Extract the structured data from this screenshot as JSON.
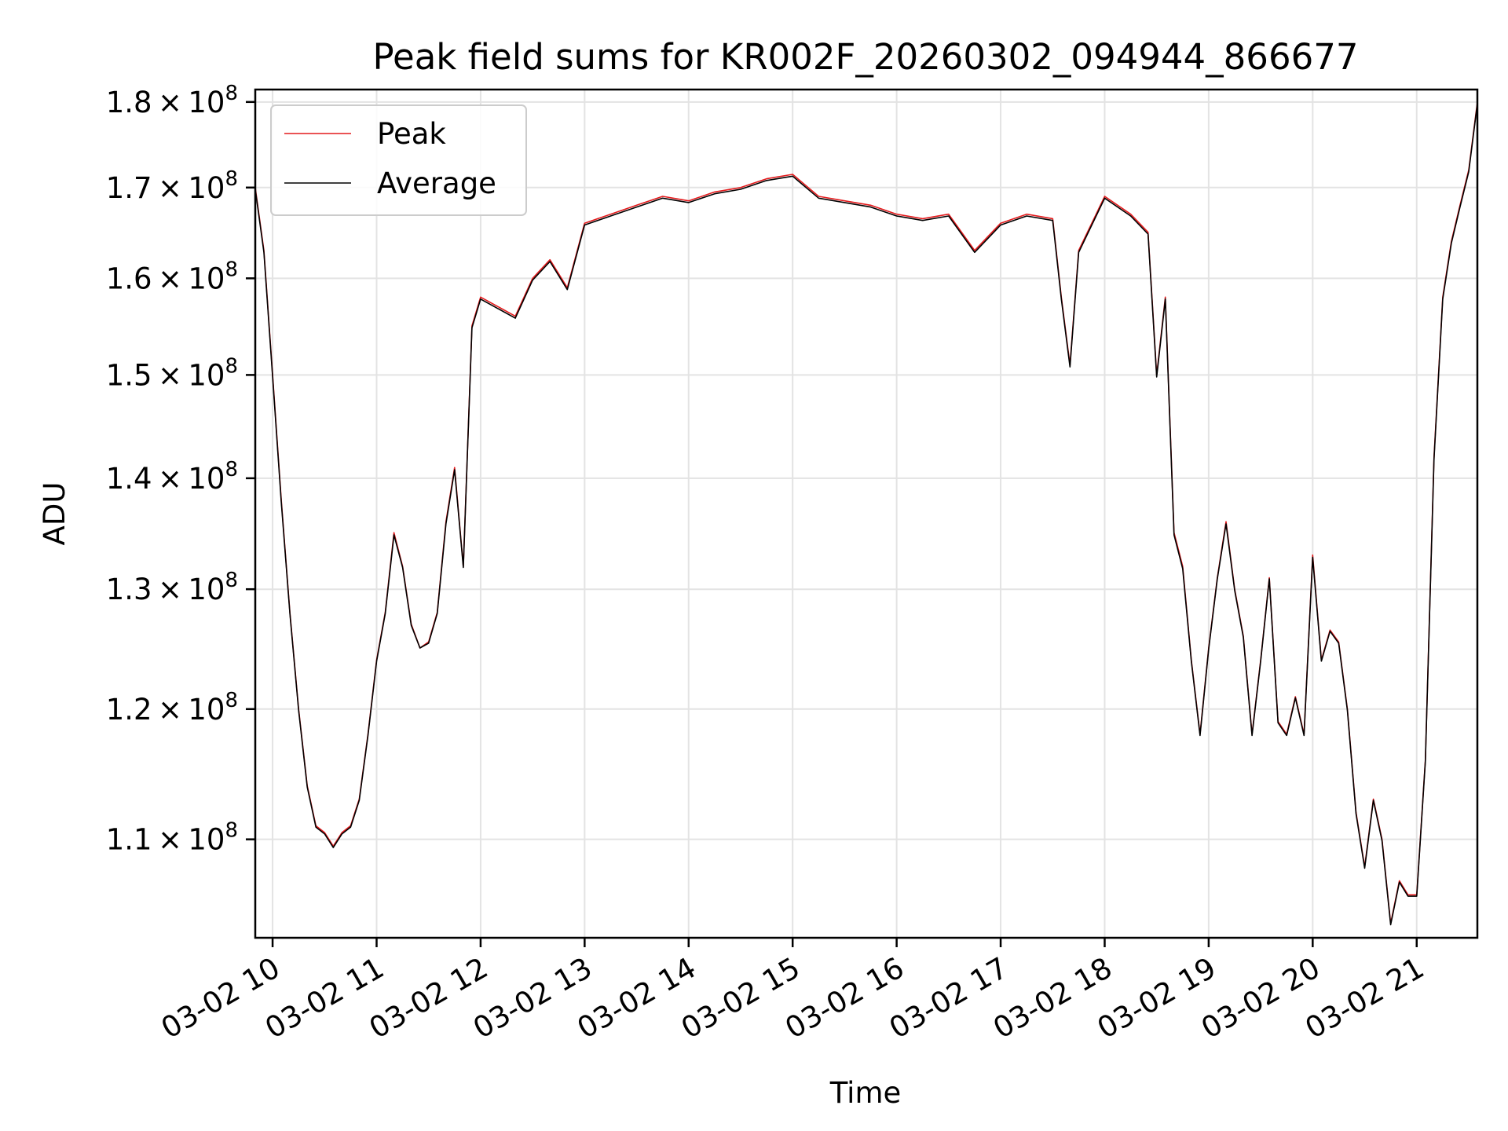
{
  "colors": {
    "peak": "#e41a1c",
    "average": "#000000",
    "grid": "#e3e3e3"
  },
  "chart_data": {
    "type": "line",
    "title": "Peak field sums for KR002F_20260302_094944_866677",
    "xlabel": "Time",
    "ylabel": "ADU",
    "x_scale": "time",
    "y_scale": "log",
    "xlim": [
      "2026-03-02 09:50",
      "2026-03-02 21:35"
    ],
    "ylim": [
      103000000,
      181500000
    ],
    "x_ticks": [
      {
        "value": "2026-03-02 10:00",
        "label": "03-02 10"
      },
      {
        "value": "2026-03-02 11:00",
        "label": "03-02 11"
      },
      {
        "value": "2026-03-02 12:00",
        "label": "03-02 12"
      },
      {
        "value": "2026-03-02 13:00",
        "label": "03-02 13"
      },
      {
        "value": "2026-03-02 14:00",
        "label": "03-02 14"
      },
      {
        "value": "2026-03-02 15:00",
        "label": "03-02 15"
      },
      {
        "value": "2026-03-02 16:00",
        "label": "03-02 16"
      },
      {
        "value": "2026-03-02 17:00",
        "label": "03-02 17"
      },
      {
        "value": "2026-03-02 18:00",
        "label": "03-02 18"
      },
      {
        "value": "2026-03-02 19:00",
        "label": "03-02 19"
      },
      {
        "value": "2026-03-02 20:00",
        "label": "03-02 20"
      },
      {
        "value": "2026-03-02 21:00",
        "label": "03-02 21"
      }
    ],
    "y_ticks": [
      {
        "value": 110000000,
        "mant": "1.1",
        "exp": "8"
      },
      {
        "value": 120000000,
        "mant": "1.2",
        "exp": "8"
      },
      {
        "value": 130000000,
        "mant": "1.3",
        "exp": "8"
      },
      {
        "value": 140000000,
        "mant": "1.4",
        "exp": "8"
      },
      {
        "value": 150000000,
        "mant": "1.5",
        "exp": "8"
      },
      {
        "value": 160000000,
        "mant": "1.6",
        "exp": "8"
      },
      {
        "value": 170000000,
        "mant": "1.7",
        "exp": "8"
      },
      {
        "value": 180000000,
        "mant": "1.8",
        "exp": "8"
      }
    ],
    "grid": true,
    "legend": {
      "position": "top-left",
      "entries": [
        "Peak",
        "Average"
      ]
    },
    "series": [
      {
        "name": "Peak",
        "color": "#e41a1c",
        "x": [
          "2026-03-02 09:50",
          "2026-03-02 09:55",
          "2026-03-02 10:00",
          "2026-03-02 10:05",
          "2026-03-02 10:10",
          "2026-03-02 10:15",
          "2026-03-02 10:20",
          "2026-03-02 10:25",
          "2026-03-02 10:30",
          "2026-03-02 10:35",
          "2026-03-02 10:40",
          "2026-03-02 10:45",
          "2026-03-02 10:50",
          "2026-03-02 10:55",
          "2026-03-02 11:00",
          "2026-03-02 11:05",
          "2026-03-02 11:10",
          "2026-03-02 11:15",
          "2026-03-02 11:20",
          "2026-03-02 11:25",
          "2026-03-02 11:30",
          "2026-03-02 11:35",
          "2026-03-02 11:40",
          "2026-03-02 11:45",
          "2026-03-02 11:50",
          "2026-03-02 11:55",
          "2026-03-02 12:00",
          "2026-03-02 12:10",
          "2026-03-02 12:20",
          "2026-03-02 12:30",
          "2026-03-02 12:40",
          "2026-03-02 12:50",
          "2026-03-02 13:00",
          "2026-03-02 13:15",
          "2026-03-02 13:30",
          "2026-03-02 13:45",
          "2026-03-02 14:00",
          "2026-03-02 14:15",
          "2026-03-02 14:30",
          "2026-03-02 14:45",
          "2026-03-02 15:00",
          "2026-03-02 15:15",
          "2026-03-02 15:30",
          "2026-03-02 15:45",
          "2026-03-02 16:00",
          "2026-03-02 16:15",
          "2026-03-02 16:30",
          "2026-03-02 16:45",
          "2026-03-02 17:00",
          "2026-03-02 17:15",
          "2026-03-02 17:30",
          "2026-03-02 17:35",
          "2026-03-02 17:40",
          "2026-03-02 17:45",
          "2026-03-02 18:00",
          "2026-03-02 18:15",
          "2026-03-02 18:25",
          "2026-03-02 18:30",
          "2026-03-02 18:35",
          "2026-03-02 18:40",
          "2026-03-02 18:45",
          "2026-03-02 18:50",
          "2026-03-02 18:55",
          "2026-03-02 19:00",
          "2026-03-02 19:05",
          "2026-03-02 19:10",
          "2026-03-02 19:15",
          "2026-03-02 19:20",
          "2026-03-02 19:25",
          "2026-03-02 19:30",
          "2026-03-02 19:35",
          "2026-03-02 19:40",
          "2026-03-02 19:45",
          "2026-03-02 19:50",
          "2026-03-02 19:55",
          "2026-03-02 20:00",
          "2026-03-02 20:05",
          "2026-03-02 20:10",
          "2026-03-02 20:15",
          "2026-03-02 20:20",
          "2026-03-02 20:25",
          "2026-03-02 20:30",
          "2026-03-02 20:35",
          "2026-03-02 20:40",
          "2026-03-02 20:45",
          "2026-03-02 20:50",
          "2026-03-02 20:55",
          "2026-03-02 21:00",
          "2026-03-02 21:05",
          "2026-03-02 21:10",
          "2026-03-02 21:15",
          "2026-03-02 21:20",
          "2026-03-02 21:25",
          "2026-03-02 21:30",
          "2026-03-02 21:35"
        ],
        "values": [
          170000000,
          163000000,
          150000000,
          138000000,
          128000000,
          120000000,
          114000000,
          111000000,
          110500000,
          109500000,
          110500000,
          111000000,
          113000000,
          118000000,
          124000000,
          128000000,
          135000000,
          132000000,
          127000000,
          125000000,
          125500000,
          128000000,
          136000000,
          141000000,
          132000000,
          155000000,
          158000000,
          157000000,
          156000000,
          160000000,
          162000000,
          159000000,
          166000000,
          167000000,
          168000000,
          169000000,
          168500000,
          169500000,
          170000000,
          171000000,
          171500000,
          169000000,
          168500000,
          168000000,
          167000000,
          166500000,
          167000000,
          163000000,
          166000000,
          167000000,
          166500000,
          158000000,
          151000000,
          163000000,
          169000000,
          167000000,
          165000000,
          150000000,
          158000000,
          135000000,
          132000000,
          124000000,
          118000000,
          125000000,
          131000000,
          136000000,
          130000000,
          126000000,
          118000000,
          124000000,
          131000000,
          119000000,
          118000000,
          121000000,
          118000000,
          133000000,
          124000000,
          126500000,
          125500000,
          120000000,
          112000000,
          108000000,
          113000000,
          110000000,
          104000000,
          107000000,
          106000000,
          106000000,
          116000000,
          142000000,
          158000000,
          164000000,
          168000000,
          172000000,
          180000000
        ]
      },
      {
        "name": "Average",
        "color": "#000000",
        "x": [
          "2026-03-02 09:50",
          "2026-03-02 09:55",
          "2026-03-02 10:00",
          "2026-03-02 10:05",
          "2026-03-02 10:10",
          "2026-03-02 10:15",
          "2026-03-02 10:20",
          "2026-03-02 10:25",
          "2026-03-02 10:30",
          "2026-03-02 10:35",
          "2026-03-02 10:40",
          "2026-03-02 10:45",
          "2026-03-02 10:50",
          "2026-03-02 10:55",
          "2026-03-02 11:00",
          "2026-03-02 11:05",
          "2026-03-02 11:10",
          "2026-03-02 11:15",
          "2026-03-02 11:20",
          "2026-03-02 11:25",
          "2026-03-02 11:30",
          "2026-03-02 11:35",
          "2026-03-02 11:40",
          "2026-03-02 11:45",
          "2026-03-02 11:50",
          "2026-03-02 11:55",
          "2026-03-02 12:00",
          "2026-03-02 12:10",
          "2026-03-02 12:20",
          "2026-03-02 12:30",
          "2026-03-02 12:40",
          "2026-03-02 12:50",
          "2026-03-02 13:00",
          "2026-03-02 13:15",
          "2026-03-02 13:30",
          "2026-03-02 13:45",
          "2026-03-02 14:00",
          "2026-03-02 14:15",
          "2026-03-02 14:30",
          "2026-03-02 14:45",
          "2026-03-02 15:00",
          "2026-03-02 15:15",
          "2026-03-02 15:30",
          "2026-03-02 15:45",
          "2026-03-02 16:00",
          "2026-03-02 16:15",
          "2026-03-02 16:30",
          "2026-03-02 16:45",
          "2026-03-02 17:00",
          "2026-03-02 17:15",
          "2026-03-02 17:30",
          "2026-03-02 17:35",
          "2026-03-02 17:40",
          "2026-03-02 17:45",
          "2026-03-02 18:00",
          "2026-03-02 18:15",
          "2026-03-02 18:25",
          "2026-03-02 18:30",
          "2026-03-02 18:35",
          "2026-03-02 18:40",
          "2026-03-02 18:45",
          "2026-03-02 18:50",
          "2026-03-02 18:55",
          "2026-03-02 19:00",
          "2026-03-02 19:05",
          "2026-03-02 19:10",
          "2026-03-02 19:15",
          "2026-03-02 19:20",
          "2026-03-02 19:25",
          "2026-03-02 19:30",
          "2026-03-02 19:35",
          "2026-03-02 19:40",
          "2026-03-02 19:45",
          "2026-03-02 19:50",
          "2026-03-02 19:55",
          "2026-03-02 20:00",
          "2026-03-02 20:05",
          "2026-03-02 20:10",
          "2026-03-02 20:15",
          "2026-03-02 20:20",
          "2026-03-02 20:25",
          "2026-03-02 20:30",
          "2026-03-02 20:35",
          "2026-03-02 20:40",
          "2026-03-02 20:45",
          "2026-03-02 20:50",
          "2026-03-02 20:55",
          "2026-03-02 21:00",
          "2026-03-02 21:05",
          "2026-03-02 21:10",
          "2026-03-02 21:15",
          "2026-03-02 21:20",
          "2026-03-02 21:25",
          "2026-03-02 21:30",
          "2026-03-02 21:35"
        ],
        "values": [
          169800000,
          162800000,
          149800000,
          137800000,
          127900000,
          119900000,
          113900000,
          110900000,
          110400000,
          109400000,
          110400000,
          110900000,
          112900000,
          117900000,
          123900000,
          127900000,
          134800000,
          131900000,
          126900000,
          125000000,
          125400000,
          127900000,
          135800000,
          140800000,
          131900000,
          154800000,
          157800000,
          156800000,
          155800000,
          159800000,
          161800000,
          158800000,
          165800000,
          166800000,
          167800000,
          168800000,
          168300000,
          169300000,
          169800000,
          170800000,
          171300000,
          168800000,
          168300000,
          167800000,
          166800000,
          166300000,
          166800000,
          162800000,
          165800000,
          166800000,
          166300000,
          157800000,
          150800000,
          162800000,
          168800000,
          166800000,
          164800000,
          149800000,
          157800000,
          134800000,
          131800000,
          123900000,
          117900000,
          124900000,
          130900000,
          135800000,
          129900000,
          125900000,
          117900000,
          123900000,
          130900000,
          118900000,
          117900000,
          120900000,
          117900000,
          132800000,
          123900000,
          126400000,
          125400000,
          119900000,
          111900000,
          107900000,
          112900000,
          109900000,
          103900000,
          106900000,
          105900000,
          105900000,
          115900000,
          141800000,
          157800000,
          163800000,
          167800000,
          171800000,
          179800000
        ]
      }
    ]
  }
}
